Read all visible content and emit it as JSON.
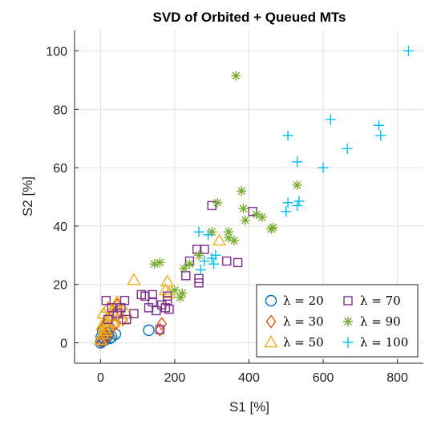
{
  "chart_data": {
    "type": "scatter",
    "title": "SVD of Orbited + Queued MTs",
    "xlabel": "S1 [%]",
    "ylabel": "S2 [%]",
    "xlim": [
      -70,
      870
    ],
    "ylim": [
      -7,
      107
    ],
    "xticks": [
      0,
      200,
      400,
      600,
      800
    ],
    "yticks": [
      0,
      20,
      40,
      60,
      80,
      100
    ],
    "xtick_labels": [
      "0",
      "200",
      "400",
      "600",
      "800"
    ],
    "ytick_labels": [
      "0",
      "20",
      "40",
      "60",
      "80",
      "100"
    ],
    "grid": true,
    "legend_position": "bottom-right",
    "series": [
      {
        "name": "λ = 20",
        "marker": "circle",
        "color": "#0072BD",
        "points": [
          [
            0,
            0
          ],
          [
            3,
            0.5
          ],
          [
            8,
            1.5
          ],
          [
            5,
            0.8
          ],
          [
            12,
            1
          ],
          [
            15,
            2
          ],
          [
            20,
            2.5
          ],
          [
            10,
            3
          ],
          [
            6,
            4
          ],
          [
            25,
            1.5
          ],
          [
            18,
            3.5
          ],
          [
            40,
            3
          ],
          [
            130,
            4.3
          ],
          [
            2,
            2
          ],
          [
            30,
            2
          ]
        ]
      },
      {
        "name": "λ = 30",
        "marker": "diamond",
        "color": "#D95319",
        "points": [
          [
            0,
            0.5
          ],
          [
            5,
            1
          ],
          [
            10,
            2
          ],
          [
            15,
            3
          ],
          [
            20,
            2
          ],
          [
            25,
            4
          ],
          [
            30,
            5
          ],
          [
            40,
            6.5
          ],
          [
            45,
            13
          ],
          [
            60,
            8
          ],
          [
            160,
            4.5
          ],
          [
            165,
            6.5
          ],
          [
            8,
            5
          ],
          [
            12,
            6
          ],
          [
            35,
            10
          ],
          [
            50,
            11
          ]
        ]
      },
      {
        "name": "λ = 50",
        "marker": "triangle",
        "color": "#EDB120",
        "points": [
          [
            0,
            1
          ],
          [
            5,
            3
          ],
          [
            10,
            5
          ],
          [
            12,
            7
          ],
          [
            15,
            8
          ],
          [
            20,
            6
          ],
          [
            25,
            9
          ],
          [
            8,
            10
          ],
          [
            30,
            11
          ],
          [
            20,
            12
          ],
          [
            40,
            13
          ],
          [
            45,
            14
          ],
          [
            60,
            8
          ],
          [
            70,
            10
          ],
          [
            90,
            21.5
          ],
          [
            180,
            21
          ],
          [
            175,
            18
          ],
          [
            185,
            17
          ],
          [
            320,
            35
          ],
          [
            5,
            6
          ],
          [
            15,
            4
          ],
          [
            35,
            7
          ]
        ]
      },
      {
        "name": "λ = 70",
        "marker": "square",
        "color": "#7E2F8E",
        "points": [
          [
            15,
            14.5
          ],
          [
            20,
            8
          ],
          [
            30,
            12
          ],
          [
            45,
            10
          ],
          [
            55,
            12
          ],
          [
            65,
            14.5
          ],
          [
            70,
            8
          ],
          [
            90,
            10
          ],
          [
            110,
            16.5
          ],
          [
            120,
            16
          ],
          [
            130,
            12
          ],
          [
            140,
            14
          ],
          [
            140,
            16.5
          ],
          [
            150,
            11
          ],
          [
            160,
            4.5
          ],
          [
            165,
            13
          ],
          [
            175,
            12
          ],
          [
            180,
            14.5
          ],
          [
            180,
            16
          ],
          [
            185,
            11.5
          ],
          [
            230,
            23
          ],
          [
            240,
            28
          ],
          [
            260,
            32
          ],
          [
            265,
            20.5
          ],
          [
            265,
            22
          ],
          [
            280,
            32
          ],
          [
            300,
            47
          ],
          [
            340,
            28
          ],
          [
            370,
            27.5
          ],
          [
            410,
            45
          ]
        ]
      },
      {
        "name": "λ = 90",
        "marker": "asterisk",
        "color": "#77AC30",
        "points": [
          [
            145,
            27
          ],
          [
            160,
            27.5
          ],
          [
            200,
            18
          ],
          [
            215,
            15.5
          ],
          [
            220,
            17
          ],
          [
            225,
            25.5
          ],
          [
            240,
            27
          ],
          [
            265,
            30
          ],
          [
            300,
            38
          ],
          [
            315,
            48
          ],
          [
            345,
            36
          ],
          [
            345,
            38
          ],
          [
            360,
            35
          ],
          [
            365,
            91.5
          ],
          [
            380,
            52
          ],
          [
            385,
            46
          ],
          [
            390,
            42
          ],
          [
            420,
            44
          ],
          [
            435,
            43
          ],
          [
            460,
            39
          ],
          [
            465,
            39.5
          ],
          [
            530,
            54
          ]
        ]
      },
      {
        "name": "λ = 100",
        "marker": "plus",
        "color": "#00BFEF",
        "points": [
          [
            265,
            38
          ],
          [
            270,
            25
          ],
          [
            280,
            28
          ],
          [
            290,
            37
          ],
          [
            300,
            29
          ],
          [
            305,
            27
          ],
          [
            310,
            30
          ],
          [
            500,
            45
          ],
          [
            505,
            48
          ],
          [
            505,
            71
          ],
          [
            530,
            62
          ],
          [
            530,
            47
          ],
          [
            535,
            48.5
          ],
          [
            600,
            60
          ],
          [
            620,
            76.5
          ],
          [
            665,
            66.5
          ],
          [
            750,
            74.5
          ],
          [
            755,
            71
          ],
          [
            830,
            100
          ]
        ]
      }
    ]
  }
}
